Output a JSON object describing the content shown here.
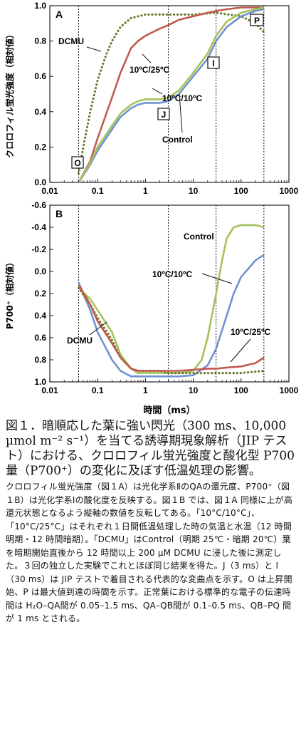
{
  "figure": {
    "panel_a_label": "A",
    "panel_b_label": "B",
    "xlabel": "時間（ms）",
    "ylabel_a": "クロロフィル蛍光強度（相対値）",
    "ylabel_b": "P700⁺（相対値）",
    "markers": [
      "O",
      "J",
      "I",
      "P"
    ]
  },
  "chart_data": [
    {
      "type": "line",
      "panel": "A",
      "x_scale": "log",
      "xlim": [
        0.01,
        1000
      ],
      "ylim": [
        0.0,
        1.0
      ],
      "x_ticks": [
        "0.01",
        "0.1",
        "1",
        "10",
        "100",
        "1000"
      ],
      "y_ticks": [
        "0.0",
        "0.2",
        "0.4",
        "0.6",
        "0.8",
        "1.0"
      ],
      "vertical_lines_ms": [
        0.04,
        3,
        30,
        300
      ],
      "annotations": [
        "DCMU",
        "10ºC/25ºC",
        "10ºC/10ºC",
        "Control",
        "O",
        "J",
        "I",
        "P"
      ],
      "series": [
        {
          "name": "DCMU",
          "color": "#6b7a2a",
          "style": "dotted",
          "x": [
            0.04,
            0.05,
            0.07,
            0.1,
            0.15,
            0.2,
            0.3,
            0.5,
            0.7,
            1,
            2,
            5,
            10,
            30,
            100,
            200,
            300
          ],
          "y": [
            0.05,
            0.2,
            0.4,
            0.58,
            0.72,
            0.8,
            0.88,
            0.93,
            0.94,
            0.95,
            0.95,
            0.95,
            0.95,
            0.96,
            0.94,
            0.9,
            0.85
          ]
        },
        {
          "name": "10ºC/25ºC",
          "color": "#c05a4f",
          "style": "solid",
          "x": [
            0.04,
            0.07,
            0.1,
            0.2,
            0.3,
            0.5,
            0.7,
            1,
            2,
            3,
            5,
            10,
            20,
            30,
            50,
            100,
            200,
            300
          ],
          "y": [
            0.0,
            0.12,
            0.25,
            0.48,
            0.62,
            0.76,
            0.8,
            0.83,
            0.87,
            0.89,
            0.92,
            0.94,
            0.96,
            0.97,
            0.98,
            0.99,
            0.99,
            0.99
          ]
        },
        {
          "name": "10ºC/10ºC",
          "color": "#6f93cf",
          "style": "solid",
          "x": [
            0.04,
            0.07,
            0.1,
            0.2,
            0.3,
            0.5,
            0.7,
            1,
            2,
            3,
            5,
            10,
            20,
            30,
            50,
            100,
            200,
            300
          ],
          "y": [
            0.0,
            0.1,
            0.18,
            0.3,
            0.37,
            0.42,
            0.44,
            0.45,
            0.45,
            0.46,
            0.5,
            0.6,
            0.7,
            0.8,
            0.88,
            0.94,
            0.97,
            0.98
          ]
        },
        {
          "name": "Control",
          "color": "#a6c25a",
          "style": "solid",
          "x": [
            0.04,
            0.07,
            0.1,
            0.2,
            0.3,
            0.5,
            0.7,
            1,
            2,
            3,
            5,
            10,
            20,
            30,
            50,
            100,
            200,
            300
          ],
          "y": [
            0.0,
            0.11,
            0.2,
            0.32,
            0.39,
            0.44,
            0.46,
            0.47,
            0.47,
            0.48,
            0.52,
            0.62,
            0.73,
            0.83,
            0.91,
            0.96,
            0.98,
            0.99
          ]
        }
      ]
    },
    {
      "type": "line",
      "panel": "B",
      "x_scale": "log",
      "xlim": [
        0.01,
        1000
      ],
      "ylim": [
        -0.6,
        1.0
      ],
      "y_inverted": true,
      "x_ticks": [
        "0.01",
        "0.1",
        "1",
        "10",
        "100",
        "1000"
      ],
      "y_ticks": [
        "-0.6",
        "-0.4",
        "-0.2",
        "0.0",
        "0.2",
        "0.4",
        "0.6",
        "0.8",
        "1.0"
      ],
      "vertical_lines_ms": [
        0.04,
        3,
        30,
        300
      ],
      "annotations": [
        "Control",
        "10ºC/10ºC",
        "DCMU",
        "10ºC/25ºC"
      ],
      "series": [
        {
          "name": "Control",
          "color": "#a6c25a",
          "style": "solid",
          "x": [
            0.04,
            0.07,
            0.1,
            0.2,
            0.3,
            0.5,
            0.7,
            1,
            2,
            3,
            5,
            10,
            15,
            20,
            30,
            40,
            50,
            70,
            100,
            200,
            300
          ],
          "y": [
            0.15,
            0.25,
            0.35,
            0.55,
            0.75,
            0.88,
            0.92,
            0.92,
            0.92,
            0.92,
            0.92,
            0.9,
            0.8,
            0.6,
            0.2,
            -0.1,
            -0.3,
            -0.4,
            -0.42,
            -0.42,
            -0.4
          ]
        },
        {
          "name": "10ºC/10ºC",
          "color": "#6f93cf",
          "style": "solid",
          "x": [
            0.04,
            0.07,
            0.1,
            0.2,
            0.3,
            0.5,
            0.7,
            1,
            2,
            3,
            5,
            10,
            20,
            30,
            50,
            70,
            100,
            200,
            300
          ],
          "y": [
            0.1,
            0.35,
            0.55,
            0.8,
            0.9,
            0.95,
            0.95,
            0.95,
            0.95,
            0.95,
            0.95,
            0.94,
            0.85,
            0.7,
            0.4,
            0.2,
            0.05,
            -0.1,
            -0.15
          ]
        },
        {
          "name": "DCMU",
          "color": "#6b7a2a",
          "style": "dotted",
          "x": [
            0.04,
            0.07,
            0.1,
            0.2,
            0.3,
            0.5,
            0.7,
            1,
            2,
            3,
            5,
            10,
            30,
            100,
            300
          ],
          "y": [
            0.15,
            0.3,
            0.42,
            0.62,
            0.78,
            0.88,
            0.9,
            0.9,
            0.9,
            0.92,
            0.92,
            0.92,
            0.92,
            0.92,
            0.9
          ]
        },
        {
          "name": "10ºC/25ºC",
          "color": "#c05a4f",
          "style": "solid",
          "x": [
            0.04,
            0.07,
            0.1,
            0.2,
            0.3,
            0.5,
            0.7,
            1,
            2,
            3,
            5,
            10,
            20,
            30,
            50,
            100,
            200,
            300
          ],
          "y": [
            0.12,
            0.3,
            0.45,
            0.65,
            0.78,
            0.88,
            0.9,
            0.9,
            0.9,
            0.9,
            0.9,
            0.89,
            0.88,
            0.88,
            0.87,
            0.86,
            0.83,
            0.78
          ]
        }
      ]
    }
  ],
  "caption": {
    "title": "図１．暗順応した葉に強い閃光（300 ms、10,000 µmol m⁻² s⁻¹）を当てる誘導期現象解析（JIP テスト）における、クロロフィル蛍光強度と酸化型 P700 量（P700⁺）の変化に及ぼす低温処理の影響。",
    "body": "クロロフィル蛍光強度（図１A）は光化学系ⅡのQAの還元度、P700⁺（図１B）は光化学系Ⅰの酸化度を反映する。図１B では、図１A 同様に上が高還元状態となるよう縦軸の数値を反転してある。「10°C/10°C」、「10°C/25°C」はそれぞれ１日間低温処理した時の気温と水温（12 時間明期・12 時間暗期）。「DCMU」はControl（明期 25℃・暗期 20℃）葉を暗期開始直後から 12 時間以上 200 µM DCMU に浸した後に測定した。３回の独立した実験でこれとほぼ同じ結果を得た。J（3 ms）と I（30 ms）は JIP テストで着目される代表的な変曲点を示す。O は上昇開始、P は最大値到達の時間を示す。正常葉における標準的な電子の伝達時間は H₂O–QA間が 0.05–1.5 ms、QA–QB間が 0.1–0.5 ms、QB–PQ 間が 1 ms とされる。"
  }
}
